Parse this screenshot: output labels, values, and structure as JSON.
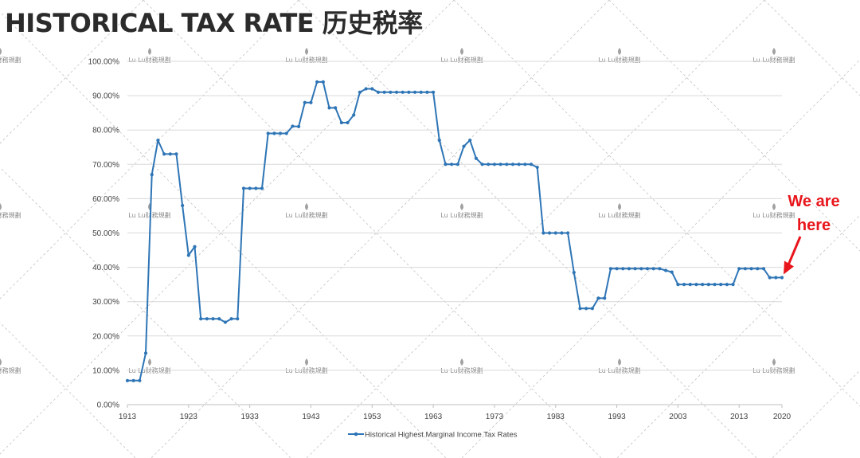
{
  "page": {
    "title": "HISTORICAL TAX RATE   历史税率",
    "watermark_text": "Lu Lu财務規劃"
  },
  "colors": {
    "series": "#2e75b6",
    "grid": "#d9d9d9",
    "annotation": "#e8161c",
    "title": "#2b2b2b"
  },
  "chart_data": {
    "type": "line",
    "title": "",
    "xlabel": "",
    "ylabel": "",
    "xlim": [
      1913,
      2020
    ],
    "ylim": [
      0,
      100
    ],
    "x_ticks": [
      1913,
      1923,
      1933,
      1943,
      1953,
      1963,
      1973,
      1983,
      1993,
      2003,
      2013,
      2020
    ],
    "y_ticks": [
      0,
      10,
      20,
      30,
      40,
      50,
      60,
      70,
      80,
      90,
      100
    ],
    "y_tick_labels": [
      "0.00%",
      "10.00%",
      "20.00%",
      "30.00%",
      "40.00%",
      "50.00%",
      "60.00%",
      "70.00%",
      "80.00%",
      "90.00%",
      "100.00%"
    ],
    "grid": true,
    "legend_position": "bottom",
    "series": [
      {
        "name": "Historical Highest Marginal Income Tax Rates",
        "x": [
          1913,
          1914,
          1915,
          1916,
          1917,
          1918,
          1919,
          1920,
          1921,
          1922,
          1923,
          1924,
          1925,
          1926,
          1927,
          1928,
          1929,
          1930,
          1931,
          1932,
          1933,
          1934,
          1935,
          1936,
          1937,
          1938,
          1939,
          1940,
          1941,
          1942,
          1943,
          1944,
          1945,
          1946,
          1947,
          1948,
          1949,
          1950,
          1951,
          1952,
          1953,
          1954,
          1955,
          1956,
          1957,
          1958,
          1959,
          1960,
          1961,
          1962,
          1963,
          1964,
          1965,
          1966,
          1967,
          1968,
          1969,
          1970,
          1971,
          1972,
          1973,
          1974,
          1975,
          1976,
          1977,
          1978,
          1979,
          1980,
          1981,
          1982,
          1983,
          1984,
          1985,
          1986,
          1987,
          1988,
          1989,
          1990,
          1991,
          1992,
          1993,
          1994,
          1995,
          1996,
          1997,
          1998,
          1999,
          2000,
          2001,
          2002,
          2003,
          2004,
          2005,
          2006,
          2007,
          2008,
          2009,
          2010,
          2011,
          2012,
          2013,
          2014,
          2015,
          2016,
          2017,
          2018,
          2019,
          2020
        ],
        "values": [
          7,
          7,
          7,
          15,
          67,
          77,
          73,
          73,
          73,
          58,
          43.5,
          46,
          25,
          25,
          25,
          25,
          24,
          25,
          25,
          63,
          63,
          63,
          63,
          79,
          79,
          79,
          79,
          81.1,
          81,
          88,
          88,
          94,
          94,
          86.45,
          86.45,
          82.13,
          82.13,
          84.36,
          91,
          92,
          92,
          91,
          91,
          91,
          91,
          91,
          91,
          91,
          91,
          91,
          91,
          77,
          70,
          70,
          70,
          75.25,
          77,
          71.75,
          70,
          70,
          70,
          70,
          70,
          70,
          70,
          70,
          70,
          69.13,
          50,
          50,
          50,
          50,
          50,
          38.5,
          28,
          28,
          28,
          31,
          31,
          39.6,
          39.6,
          39.6,
          39.6,
          39.6,
          39.6,
          39.6,
          39.6,
          39.6,
          39.1,
          38.6,
          35,
          35,
          35,
          35,
          35,
          35,
          35,
          35,
          35,
          35,
          39.6,
          39.6,
          39.6,
          39.6,
          39.6,
          37,
          37,
          37
        ]
      }
    ],
    "annotations": [
      {
        "lines": [
          "We are",
          "here"
        ],
        "points_to_year": 2020
      }
    ]
  }
}
